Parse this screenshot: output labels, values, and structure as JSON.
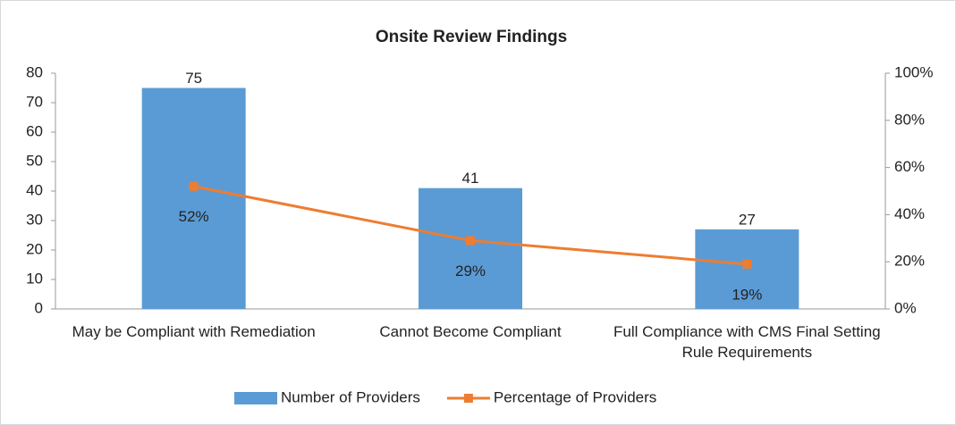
{
  "chart_data": {
    "type": "bar",
    "title": "Onsite Review Findings",
    "categories": [
      "May be Compliant with Remediation",
      "Cannot Become Compliant",
      "Full Compliance with CMS Final Setting Rule Requirements"
    ],
    "series": [
      {
        "name": "Number of Providers",
        "type": "bar",
        "color": "#5b9bd5",
        "values": [
          75,
          41,
          27
        ]
      },
      {
        "name": "Percentage of Providers",
        "type": "line",
        "axis": "y2",
        "color": "#ed7d31",
        "values": [
          52,
          29,
          19
        ],
        "value_labels": [
          "52%",
          "29%",
          "19%"
        ]
      }
    ],
    "ylim": [
      0,
      80
    ],
    "yticks": [
      0,
      10,
      20,
      30,
      40,
      50,
      60,
      70,
      80
    ],
    "y2lim": [
      0,
      100
    ],
    "y2ticks": [
      {
        "value": 0,
        "label": "0%"
      },
      {
        "value": 20,
        "label": "20%"
      },
      {
        "value": 40,
        "label": "40%"
      },
      {
        "value": 60,
        "label": "60%"
      },
      {
        "value": 80,
        "label": "80%"
      },
      {
        "value": 100,
        "label": "100%"
      }
    ],
    "legend": "bottom"
  }
}
